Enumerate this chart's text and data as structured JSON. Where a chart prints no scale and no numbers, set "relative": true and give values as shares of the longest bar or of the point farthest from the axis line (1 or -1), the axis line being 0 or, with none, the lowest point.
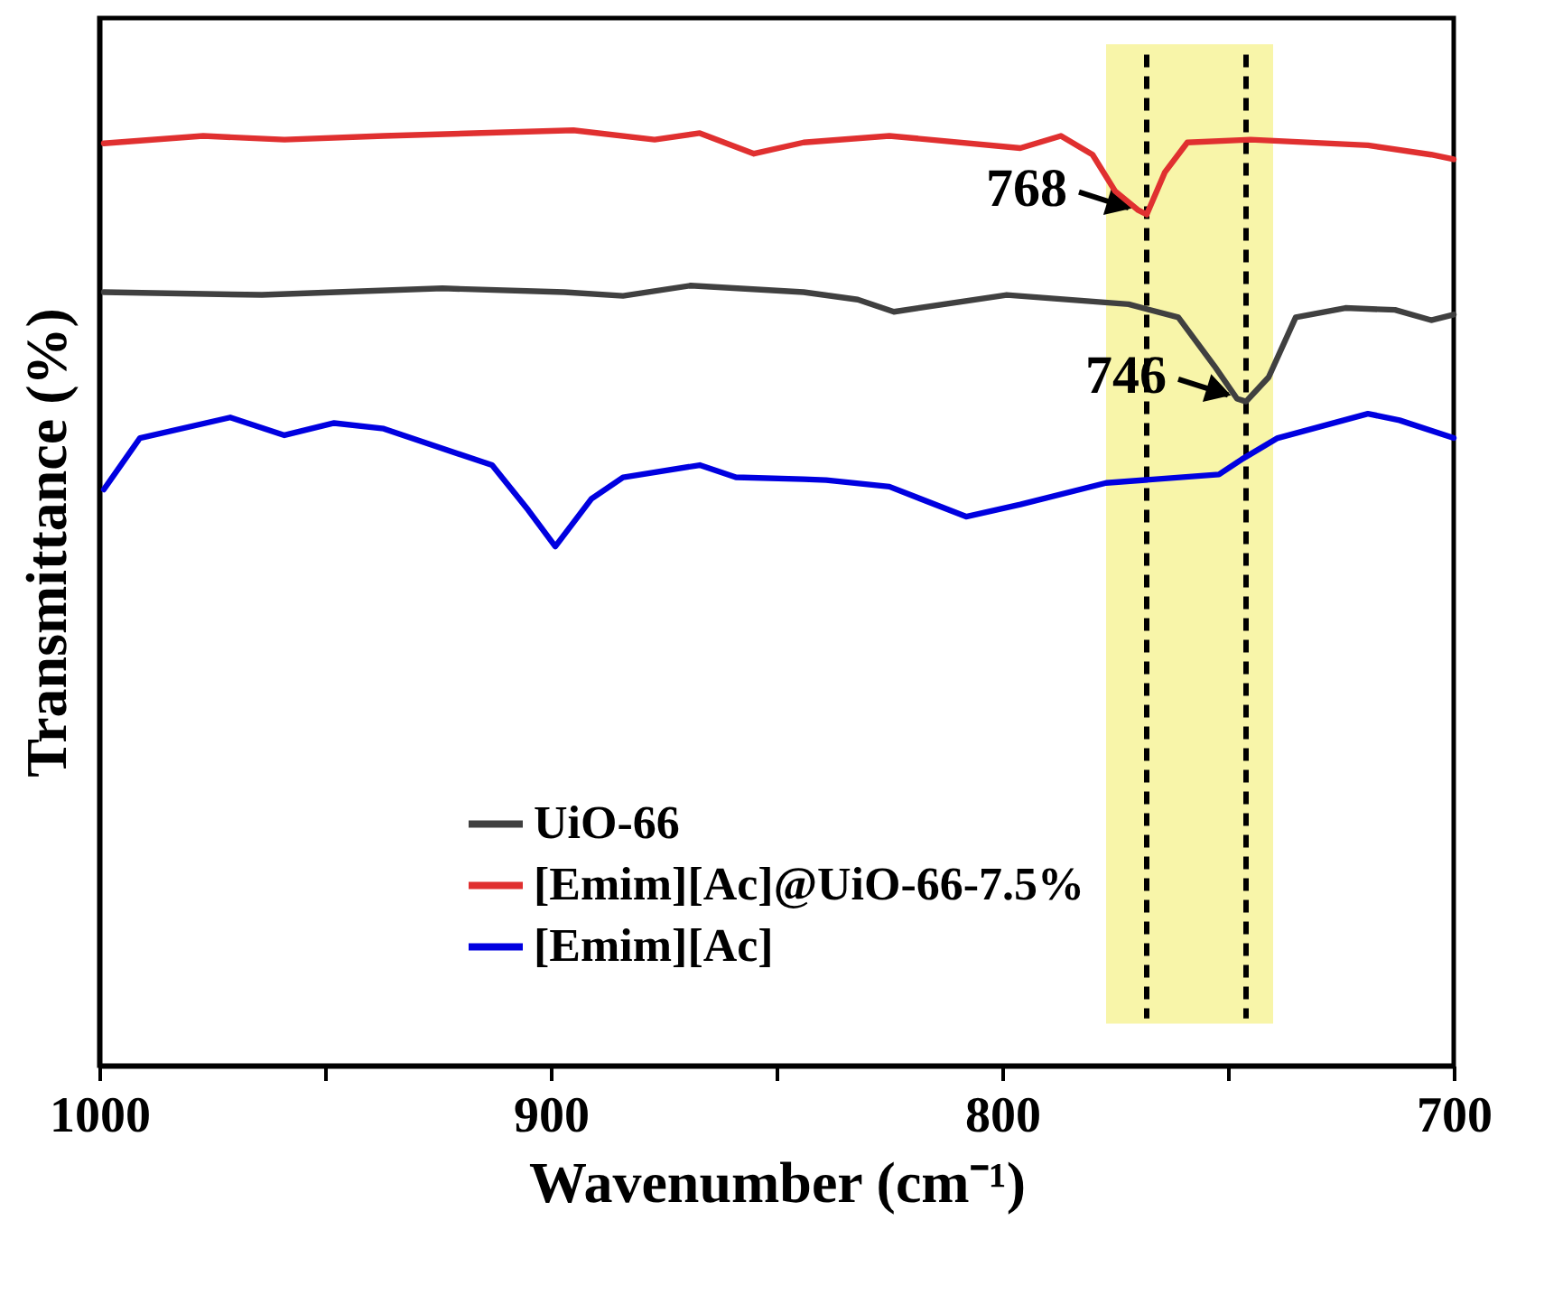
{
  "chart_data": {
    "type": "line",
    "relative": true,
    "xlabel": "Wavenumber (cm⁻¹)",
    "ylabel": "Transmittance (%)",
    "xlim": [
      1000,
      700
    ],
    "xticks": [
      1000,
      {
        "value": 950,
        "label": null
      },
      900,
      {
        "value": 850,
        "label": null
      },
      800,
      {
        "value": 750,
        "label": null
      },
      700
    ],
    "legend": "bottom",
    "grid": false,
    "line_style": "solid",
    "marker": "none",
    "series": [
      {
        "name": "UiO-66",
        "color": "#404040",
        "x": [
          999,
          964,
          924,
          897,
          884,
          869,
          844,
          832,
          824,
          799,
          772,
          761,
          753,
          748,
          746,
          741,
          735,
          724,
          713,
          705,
          700
        ],
        "values": [
          0.827,
          0.824,
          0.831,
          0.827,
          0.823,
          0.834,
          0.827,
          0.819,
          0.806,
          0.824,
          0.814,
          0.8,
          0.748,
          0.713,
          0.71,
          0.736,
          0.8,
          0.81,
          0.808,
          0.797,
          0.803
        ]
      },
      {
        "name": "[Emim][Ac]@UiO-66-7.5%",
        "color": "#e03030",
        "x": [
          999,
          977,
          959,
          937,
          895,
          877,
          867,
          855,
          844,
          825,
          796,
          787,
          780,
          775,
          770,
          768,
          764,
          759,
          745,
          719,
          705,
          700
        ],
        "values": [
          0.986,
          0.994,
          0.99,
          0.994,
          1.0,
          0.99,
          0.997,
          0.975,
          0.987,
          0.994,
          0.981,
          0.994,
          0.974,
          0.935,
          0.915,
          0.91,
          0.955,
          0.987,
          0.99,
          0.984,
          0.974,
          0.969
        ]
      },
      {
        "name": "[Emim][Ac]",
        "color": "#0000e0",
        "x": [
          999,
          991,
          971,
          959,
          948,
          937,
          913,
          905,
          899,
          891,
          884,
          867,
          859,
          844,
          839,
          825,
          808,
          796,
          777,
          752,
          747,
          739,
          719,
          712,
          700
        ],
        "values": [
          0.616,
          0.671,
          0.693,
          0.674,
          0.687,
          0.681,
          0.642,
          0.594,
          0.555,
          0.606,
          0.629,
          0.642,
          0.629,
          0.627,
          0.626,
          0.619,
          0.587,
          0.6,
          0.623,
          0.632,
          0.648,
          0.671,
          0.697,
          0.69,
          0.671
        ]
      }
    ],
    "bands": [
      {
        "axis": "x",
        "from": 777,
        "to": 740,
        "color": "#f7f39a"
      }
    ],
    "ref_lines": [
      {
        "axis": "x",
        "value": 768,
        "color": "#000000",
        "line_style": "dashed"
      },
      {
        "axis": "x",
        "value": 746,
        "color": "#000000",
        "line_style": "dashed"
      }
    ],
    "annotations": [
      {
        "text": "768",
        "x": 768,
        "y": 0.91
      },
      {
        "text": "746",
        "x": 746,
        "y": 0.71
      }
    ]
  }
}
